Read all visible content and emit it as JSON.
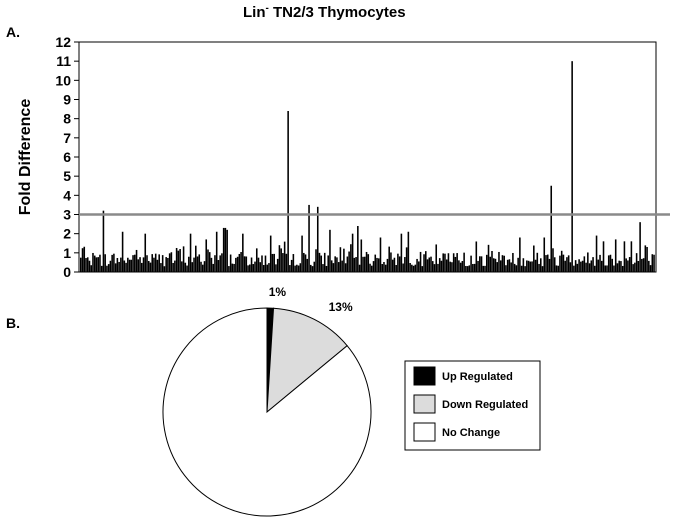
{
  "title": {
    "main": "Lin",
    "superscript": "-",
    "rest": " TN2/3 Thymocytes"
  },
  "panel_labels": {
    "a": "A.",
    "b": "B."
  },
  "chart_data": [
    {
      "type": "bar",
      "ylabel": "Fold Difference",
      "ylim": [
        0,
        12
      ],
      "yticks": [
        0,
        1,
        2,
        3,
        4,
        5,
        6,
        7,
        8,
        9,
        10,
        11,
        12
      ],
      "threshold": 3,
      "bar_count": 330,
      "peaks": [
        {
          "index": 13,
          "value": 3.2
        },
        {
          "index": 119,
          "value": 8.4
        },
        {
          "index": 131,
          "value": 3.5
        },
        {
          "index": 136,
          "value": 3.4
        },
        {
          "index": 270,
          "value": 4.5
        },
        {
          "index": 282,
          "value": 11.0
        }
      ],
      "moderate": [
        {
          "index": 24,
          "value": 2.1
        },
        {
          "index": 37,
          "value": 2.0
        },
        {
          "index": 63,
          "value": 2.0
        },
        {
          "index": 72,
          "value": 1.7
        },
        {
          "index": 78,
          "value": 2.1
        },
        {
          "index": 82,
          "value": 2.3
        },
        {
          "index": 83,
          "value": 2.3
        },
        {
          "index": 84,
          "value": 2.2
        },
        {
          "index": 93,
          "value": 2.0
        },
        {
          "index": 109,
          "value": 1.9
        },
        {
          "index": 127,
          "value": 1.9
        },
        {
          "index": 143,
          "value": 2.2
        },
        {
          "index": 156,
          "value": 2.0
        },
        {
          "index": 159,
          "value": 2.4
        },
        {
          "index": 172,
          "value": 1.8
        },
        {
          "index": 184,
          "value": 2.0
        },
        {
          "index": 188,
          "value": 2.1
        },
        {
          "index": 252,
          "value": 1.8
        },
        {
          "index": 266,
          "value": 1.8
        },
        {
          "index": 296,
          "value": 1.9
        },
        {
          "index": 300,
          "value": 1.6
        },
        {
          "index": 307,
          "value": 1.7
        },
        {
          "index": 312,
          "value": 1.6
        },
        {
          "index": 316,
          "value": 1.6
        },
        {
          "index": 321,
          "value": 2.6
        },
        {
          "index": 329,
          "value": 0.9
        }
      ]
    },
    {
      "type": "pie",
      "slices": [
        {
          "label": "Up Regulated",
          "value": 1,
          "pct_label": "1%",
          "color": "#000000"
        },
        {
          "label": "Down Regulated",
          "value": 13,
          "pct_label": "13%",
          "color": "#dcdcdc"
        },
        {
          "label": "No Change",
          "value": 86,
          "pct_label": "86%",
          "color": "#ffffff"
        }
      ],
      "legend_position": "right"
    }
  ]
}
